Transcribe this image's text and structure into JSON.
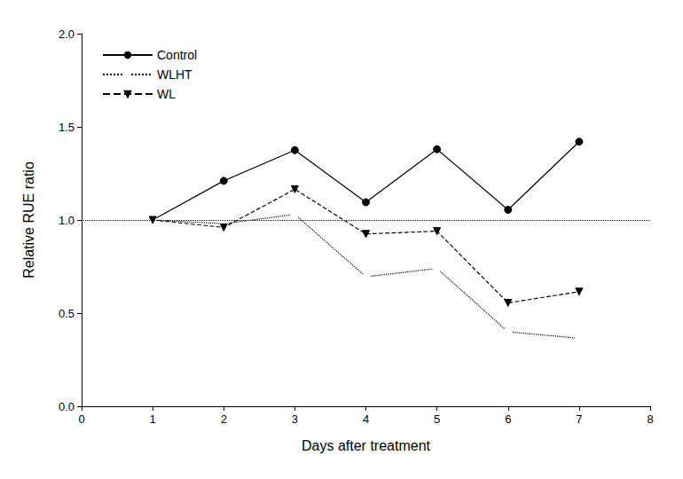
{
  "chart_data": {
    "type": "line",
    "x_label": "Days after treatment",
    "y_label": "Relative RUE ratio",
    "x": [
      1,
      2,
      3,
      4,
      5,
      6,
      7
    ],
    "series": [
      {
        "name": "Control",
        "color": "#000000",
        "marker": "circle",
        "line_style": "solid",
        "values": [
          1.0,
          1.21,
          1.375,
          1.095,
          1.38,
          1.055,
          1.42
        ]
      },
      {
        "name": "WLHT",
        "color": "#000000",
        "marker": "circle-open",
        "line_style": "dotted",
        "values": [
          1.0,
          0.98,
          1.03,
          0.695,
          0.74,
          0.4,
          0.365
        ]
      },
      {
        "name": "WL",
        "color": "#000000",
        "marker": "triangle-down",
        "line_style": "dashed",
        "values": [
          1.0,
          0.96,
          1.165,
          0.925,
          0.94,
          0.555,
          0.615
        ]
      }
    ],
    "hline": 1.0,
    "xlim": [
      0,
      8
    ],
    "xticks": [
      0,
      1,
      2,
      3,
      4,
      5,
      6,
      7,
      8
    ],
    "ylim": [
      0,
      2.0
    ],
    "yticks": [
      {
        "value": 0,
        "label": "0.0"
      },
      0.5,
      {
        "value": 1.0,
        "label": "1.0"
      },
      1.5,
      {
        "value": 2.0,
        "label": "2.0"
      }
    ],
    "grid": false,
    "legend": "upper left"
  }
}
